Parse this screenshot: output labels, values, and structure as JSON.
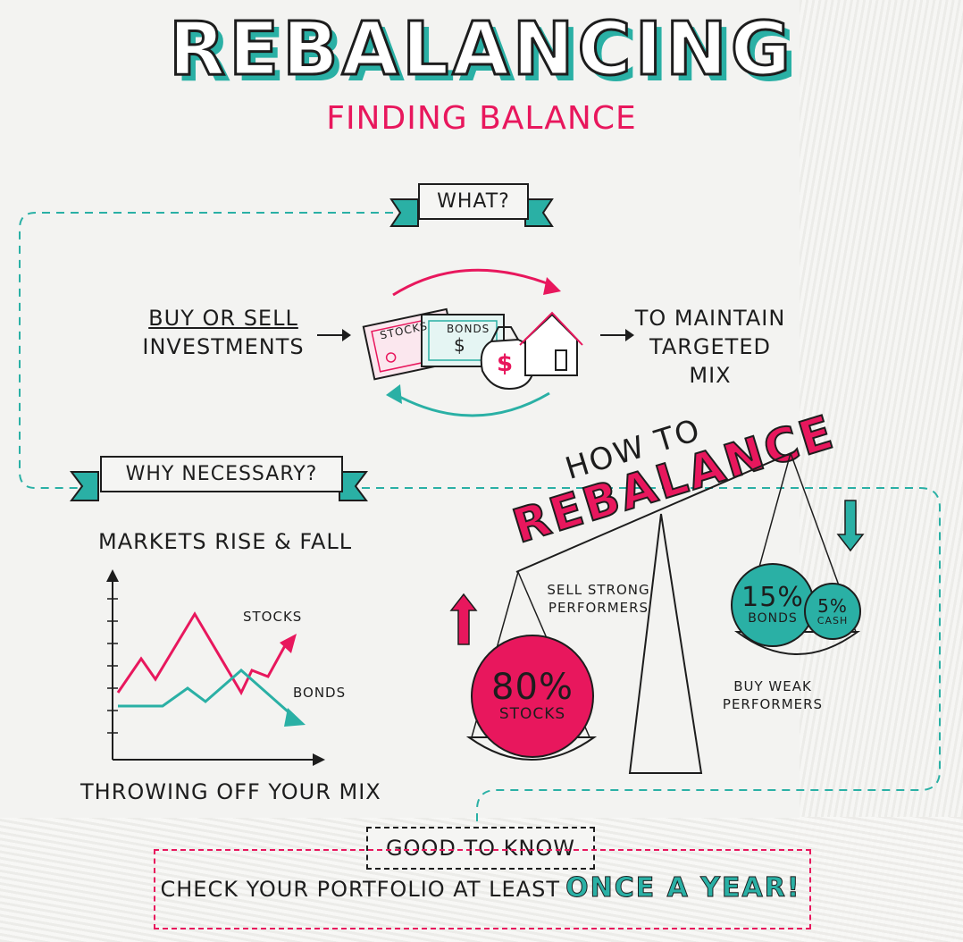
{
  "title": "REBALANCING",
  "subtitle": "FINDING BALANCE",
  "what": {
    "banner": "WHAT?",
    "buy_or": "BUY OR SELL",
    "investments": "INVESTMENTS",
    "stocks_cert": "STOCKS",
    "bonds_cert": "BONDS",
    "money_symbol": "$",
    "to_maintain": "TO MAINTAIN",
    "targeted_mix": "TARGETED MIX"
  },
  "why": {
    "banner": "WHY NECESSARY?",
    "markets": "MARKETS RISE & FALL",
    "stocks_label": "STOCKS",
    "bonds_label": "BONDS",
    "throwing": "THROWING OFF YOUR MIX"
  },
  "how": {
    "how_to": "HOW TO",
    "rebalance": "REBALANCE",
    "sell_strong": "SELL STRONG PERFORMERS",
    "buy_weak": "BUY WEAK PERFORMERS",
    "stocks_pct": "80%",
    "stocks_lbl": "STOCKS",
    "bonds_pct": "15%",
    "bonds_lbl": "BONDS",
    "cash_pct": "5%",
    "cash_lbl": "CASH"
  },
  "good_to_know": {
    "label": "GOOD TO KNOW",
    "text": "CHECK YOUR PORTFOLIO AT LEAST",
    "emphasis": "ONCE A YEAR!"
  },
  "colors": {
    "pink": "#e8175d",
    "teal": "#2ab0a5",
    "ink": "#1d1d1d"
  },
  "icons": [
    "up-arrow-icon",
    "down-arrow-icon",
    "house-icon",
    "money-bag-icon",
    "cycle-arrows-icon"
  ]
}
